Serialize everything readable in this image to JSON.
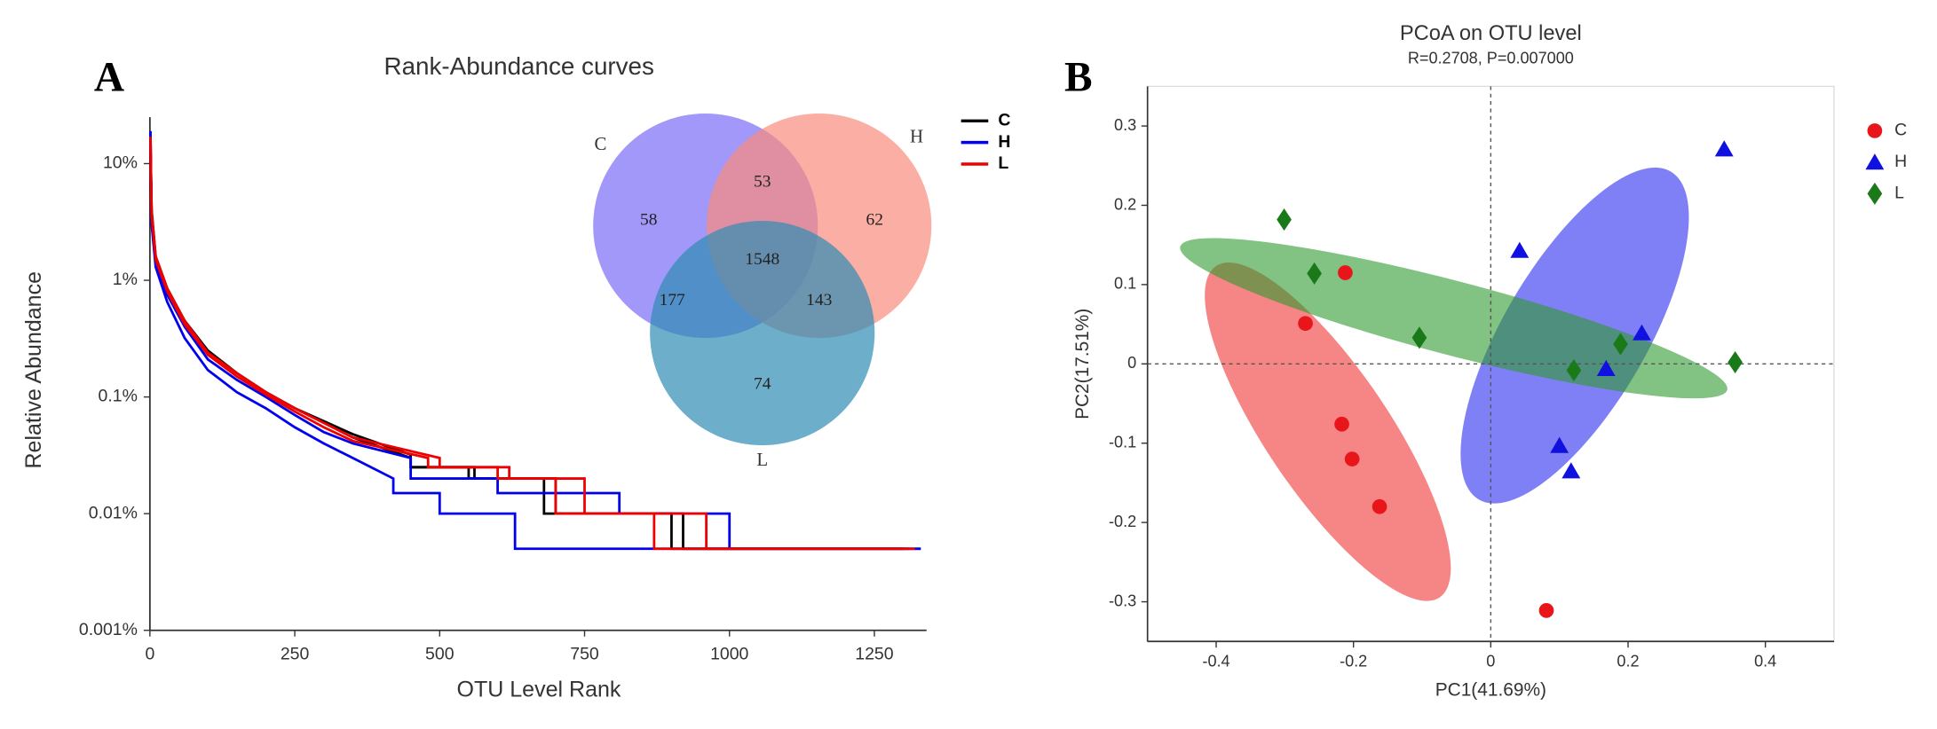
{
  "chart_data": [
    {
      "type": "line",
      "panel": "A",
      "title": "Rank-Abundance curves",
      "x_label": "OTU Level Rank",
      "y_label": "Relative Abundance",
      "log_y": true,
      "xlim": [
        0,
        1340
      ],
      "ylim": [
        0.001,
        25
      ],
      "xticks": [
        0,
        250,
        500,
        750,
        1000,
        1250
      ],
      "yticks": [
        {
          "value": 0.001,
          "label": "0.001%"
        },
        {
          "value": 0.01,
          "label": "0.01%"
        },
        {
          "value": 0.1,
          "label": "0.1%"
        },
        {
          "value": 1,
          "label": "1%"
        },
        {
          "value": 10,
          "label": "10%"
        }
      ],
      "series": [
        {
          "name": "C",
          "color": "#000000",
          "curves": [
            {
              "x": [
                1,
                3,
                10,
                30,
                60,
                100,
                150,
                200,
                250,
                300,
                350,
                450,
                450,
                550,
                550,
                700,
                700,
                900,
                900,
                1310
              ],
              "y": [
                16,
                4,
                1.6,
                0.85,
                0.45,
                0.25,
                0.16,
                0.11,
                0.08,
                0.06,
                0.045,
                0.03,
                0.025,
                0.025,
                0.02,
                0.02,
                0.01,
                0.01,
                0.005,
                0.005
              ]
            },
            {
              "x": [
                1,
                3,
                10,
                30,
                60,
                100,
                150,
                200,
                250,
                300,
                350,
                450,
                450,
                560,
                560,
                680,
                680,
                920,
                920,
                1300
              ],
              "y": [
                13,
                3.6,
                1.5,
                0.8,
                0.44,
                0.24,
                0.16,
                0.11,
                0.08,
                0.062,
                0.048,
                0.032,
                0.025,
                0.025,
                0.02,
                0.02,
                0.01,
                0.01,
                0.005,
                0.005
              ]
            }
          ]
        },
        {
          "name": "H",
          "color": "#0000ee",
          "curves": [
            {
              "x": [
                1,
                3,
                10,
                30,
                60,
                100,
                150,
                200,
                250,
                300,
                350,
                420,
                420,
                500,
                500,
                630,
                630,
                1000,
                1000,
                1330
              ],
              "y": [
                19,
                3,
                1.3,
                0.65,
                0.32,
                0.17,
                0.11,
                0.08,
                0.055,
                0.04,
                0.03,
                0.02,
                0.015,
                0.015,
                0.01,
                0.01,
                0.005,
                0.005,
                0.005,
                0.005
              ]
            },
            {
              "x": [
                1,
                3,
                10,
                30,
                60,
                100,
                150,
                200,
                250,
                300,
                350,
                450,
                450,
                600,
                600,
                810,
                810,
                1000,
                1000,
                1330
              ],
              "y": [
                14,
                3.5,
                1.5,
                0.75,
                0.4,
                0.21,
                0.14,
                0.1,
                0.07,
                0.05,
                0.04,
                0.03,
                0.02,
                0.02,
                0.015,
                0.015,
                0.01,
                0.01,
                0.005,
                0.005
              ]
            }
          ]
        },
        {
          "name": "L",
          "color": "#ee0000",
          "curves": [
            {
              "x": [
                1,
                3,
                10,
                30,
                60,
                100,
                150,
                200,
                250,
                300,
                350,
                500,
                500,
                620,
                620,
                750,
                750,
                870,
                870,
                1320
              ],
              "y": [
                17,
                3.8,
                1.6,
                0.85,
                0.45,
                0.24,
                0.16,
                0.11,
                0.08,
                0.06,
                0.045,
                0.03,
                0.025,
                0.025,
                0.02,
                0.02,
                0.01,
                0.01,
                0.005,
                0.005
              ]
            },
            {
              "x": [
                1,
                3,
                10,
                30,
                60,
                100,
                150,
                200,
                250,
                300,
                350,
                480,
                480,
                600,
                600,
                700,
                700,
                960,
                960,
                1300
              ],
              "y": [
                15,
                3.6,
                1.5,
                0.8,
                0.42,
                0.23,
                0.15,
                0.105,
                0.075,
                0.055,
                0.042,
                0.03,
                0.025,
                0.025,
                0.02,
                0.02,
                0.01,
                0.01,
                0.005,
                0.005
              ]
            }
          ]
        }
      ]
    },
    {
      "type": "venn",
      "sets": [
        {
          "name": "C",
          "color": "#7b6cf6"
        },
        {
          "name": "H",
          "color": "#f98c7c"
        },
        {
          "name": "L",
          "color": "#2f8bb4"
        }
      ],
      "regions": [
        58,
        53,
        62,
        1548,
        177,
        143,
        74
      ]
    },
    {
      "type": "scatter",
      "panel": "B",
      "title": "PCoA on OTU level",
      "subtitle": "R=0.2708, P=0.007000",
      "x_label": "PC1(41.69%)",
      "y_label": "PC2(17.51%)",
      "xlim": [
        -0.5,
        0.5
      ],
      "ylim": [
        -0.35,
        0.35
      ],
      "xticks": [
        -0.4,
        -0.2,
        0,
        0.2,
        0.4
      ],
      "yticks": [
        -0.3,
        -0.2,
        -0.1,
        0,
        0.1,
        0.2,
        0.3
      ],
      "series": [
        {
          "name": "C",
          "color": "#e8161b",
          "marker": "circle",
          "x": [
            -0.212,
            -0.27,
            -0.217,
            -0.202,
            -0.162,
            0.081
          ],
          "y": [
            0.115,
            0.051,
            -0.076,
            -0.12,
            -0.18,
            -0.311
          ]
        },
        {
          "name": "H",
          "color": "#1010e0",
          "marker": "triangle",
          "x": [
            0.042,
            0.34,
            0.22,
            0.168,
            0.1,
            0.117
          ],
          "y": [
            0.143,
            0.271,
            0.039,
            -0.006,
            -0.103,
            -0.135
          ]
        },
        {
          "name": "L",
          "color": "#1a7a1a",
          "marker": "diamond",
          "x": [
            -0.301,
            -0.257,
            -0.104,
            0.121,
            0.189,
            0.356
          ],
          "y": [
            0.182,
            0.114,
            0.033,
            -0.008,
            0.025,
            0.002
          ]
        }
      ]
    }
  ]
}
